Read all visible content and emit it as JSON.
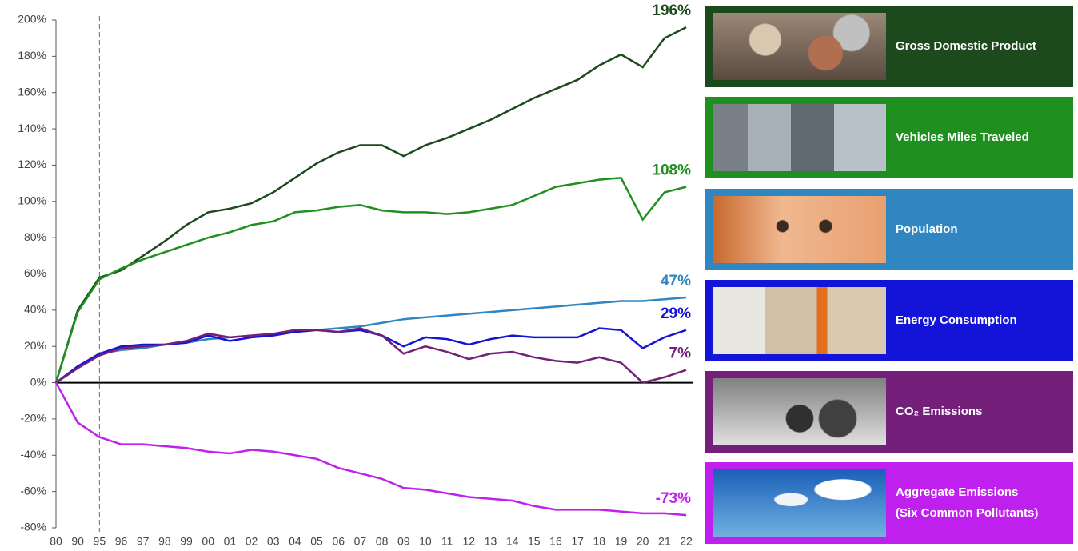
{
  "chart_data": {
    "type": "line",
    "categories": [
      "80",
      "90",
      "95",
      "96",
      "97",
      "98",
      "99",
      "00",
      "01",
      "02",
      "03",
      "04",
      "05",
      "06",
      "07",
      "08",
      "09",
      "10",
      "11",
      "12",
      "13",
      "14",
      "15",
      "16",
      "17",
      "18",
      "19",
      "20",
      "21",
      "22"
    ],
    "reference_category": "95",
    "series": [
      {
        "name": "Gross Domestic Product",
        "color": "#1d4a1d",
        "end_label": "196%",
        "values": [
          0,
          40,
          58,
          62,
          70,
          78,
          87,
          94,
          96,
          99,
          105,
          113,
          121,
          127,
          131,
          131,
          125,
          131,
          135,
          140,
          145,
          151,
          157,
          162,
          167,
          175,
          181,
          174,
          190,
          196
        ]
      },
      {
        "name": "Vehicles Miles Traveled",
        "color": "#1f8f1f",
        "end_label": "108%",
        "values": [
          0,
          39,
          57,
          63,
          68,
          72,
          76,
          80,
          83,
          87,
          89,
          94,
          95,
          97,
          98,
          95,
          94,
          94,
          93,
          94,
          96,
          98,
          103,
          108,
          110,
          112,
          113,
          90,
          105,
          108
        ]
      },
      {
        "name": "Population",
        "color": "#2f86c0",
        "end_label": "47%",
        "values": [
          0,
          9,
          16,
          18,
          19,
          21,
          22,
          24,
          25,
          26,
          27,
          28,
          29,
          30,
          31,
          33,
          35,
          36,
          37,
          38,
          39,
          40,
          41,
          42,
          43,
          44,
          45,
          45,
          46,
          47
        ]
      },
      {
        "name": "Energy Consumption",
        "color": "#1414d8",
        "end_label": "29%",
        "values": [
          0,
          9,
          16,
          20,
          21,
          21,
          22,
          26,
          23,
          25,
          26,
          28,
          29,
          28,
          29,
          26,
          20,
          25,
          24,
          21,
          24,
          26,
          25,
          25,
          25,
          30,
          29,
          19,
          25,
          29
        ]
      },
      {
        "name": "CO₂ Emissions",
        "color": "#74207a",
        "end_label": "7%",
        "values": [
          0,
          8,
          15,
          19,
          20,
          21,
          23,
          27,
          25,
          26,
          27,
          29,
          29,
          28,
          30,
          26,
          16,
          20,
          17,
          13,
          16,
          17,
          14,
          12,
          11,
          14,
          11,
          0,
          3,
          7
        ]
      },
      {
        "name": "Aggregate Emissions\n(Six Common Pollutants)",
        "color": "#c020ee",
        "end_label": "-73%",
        "values": [
          0,
          -22,
          -30,
          -34,
          -34,
          -35,
          -36,
          -38,
          -39,
          -37,
          -38,
          -40,
          -42,
          -47,
          -50,
          -53,
          -58,
          -59,
          -61,
          -63,
          -64,
          -65,
          -68,
          -70,
          -70,
          -70,
          -71,
          -72,
          -72,
          -73
        ]
      }
    ],
    "ylim": [
      -80,
      200
    ],
    "yticks": [
      {
        "value": -80,
        "label": "-80%"
      },
      {
        "value": -60,
        "label": "-60%"
      },
      {
        "value": -40,
        "label": "-40%"
      },
      {
        "value": -20,
        "label": "-20%"
      },
      {
        "value": 0,
        "label": "0%"
      },
      {
        "value": 20,
        "label": "20%"
      },
      {
        "value": 40,
        "label": "40%"
      },
      {
        "value": 60,
        "label": "60%"
      },
      {
        "value": 80,
        "label": "80%"
      },
      {
        "value": 100,
        "label": "100%"
      },
      {
        "value": 120,
        "label": "120%"
      },
      {
        "value": 140,
        "label": "140%"
      },
      {
        "value": 160,
        "label": "160%"
      },
      {
        "value": 180,
        "label": "180%"
      },
      {
        "value": 200,
        "label": "200%"
      }
    ],
    "grid": false
  }
}
